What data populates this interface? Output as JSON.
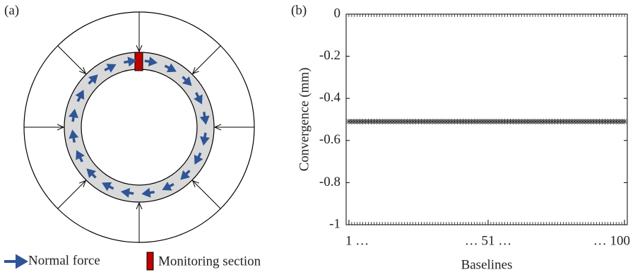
{
  "diagram": {
    "label": "(a)",
    "legend": [
      "Normal force",
      "Monitoring section"
    ]
  },
  "chart_data": {
    "type": "line",
    "panel_label": "(b)",
    "x_label": "Baselines",
    "y_label": "Convergence (mm)",
    "x": [
      1,
      2,
      3,
      4,
      5,
      6,
      7,
      8,
      9,
      10,
      11,
      12,
      13,
      14,
      15,
      16,
      17,
      18,
      19,
      20,
      21,
      22,
      23,
      24,
      25,
      26,
      27,
      28,
      29,
      30,
      31,
      32,
      33,
      34,
      35,
      36,
      37,
      38,
      39,
      40,
      41,
      42,
      43,
      44,
      45,
      46,
      47,
      48,
      49,
      50,
      51,
      52,
      53,
      54,
      55,
      56,
      57,
      58,
      59,
      60,
      61,
      62,
      63,
      64,
      65,
      66,
      67,
      68,
      69,
      70,
      71,
      72,
      73,
      74,
      75,
      76,
      77,
      78,
      79,
      80,
      81,
      82,
      83,
      84,
      85,
      86,
      87,
      88,
      89,
      90,
      91,
      92,
      93,
      94,
      95,
      96,
      97,
      98,
      99,
      100
    ],
    "series": [
      {
        "color": "#333333",
        "values": [
          -0.51,
          -0.51,
          -0.51,
          -0.51,
          -0.51,
          -0.51,
          -0.51,
          -0.51,
          -0.51,
          -0.51,
          -0.51,
          -0.51,
          -0.51,
          -0.51,
          -0.51,
          -0.51,
          -0.51,
          -0.51,
          -0.51,
          -0.51,
          -0.51,
          -0.51,
          -0.51,
          -0.51,
          -0.51,
          -0.51,
          -0.51,
          -0.51,
          -0.51,
          -0.51,
          -0.51,
          -0.51,
          -0.51,
          -0.51,
          -0.51,
          -0.51,
          -0.51,
          -0.51,
          -0.51,
          -0.51,
          -0.51,
          -0.51,
          -0.51,
          -0.51,
          -0.51,
          -0.51,
          -0.51,
          -0.51,
          -0.51,
          -0.51,
          -0.51,
          -0.51,
          -0.51,
          -0.51,
          -0.51,
          -0.51,
          -0.51,
          -0.51,
          -0.51,
          -0.51,
          -0.51,
          -0.51,
          -0.51,
          -0.51,
          -0.51,
          -0.51,
          -0.51,
          -0.51,
          -0.51,
          -0.51,
          -0.51,
          -0.51,
          -0.51,
          -0.51,
          -0.51,
          -0.51,
          -0.51,
          -0.51,
          -0.51,
          -0.51,
          -0.51,
          -0.51,
          -0.51,
          -0.51,
          -0.51,
          -0.51,
          -0.51,
          -0.51,
          -0.51,
          -0.51,
          -0.51,
          -0.51,
          -0.51,
          -0.51,
          -0.51,
          -0.51,
          -0.51,
          -0.51,
          -0.51,
          -0.51
        ]
      }
    ],
    "xlim": [
      0,
      101
    ],
    "xticks": [
      {
        "value": 1,
        "label": "1 …"
      },
      {
        "value": 51,
        "label": "… 51 …"
      },
      {
        "value": 100,
        "label": "… 100"
      }
    ],
    "ylim": [
      -1,
      0
    ],
    "yticks": [
      0,
      -0.2,
      -0.4,
      -0.6,
      -0.8,
      -1
    ]
  }
}
